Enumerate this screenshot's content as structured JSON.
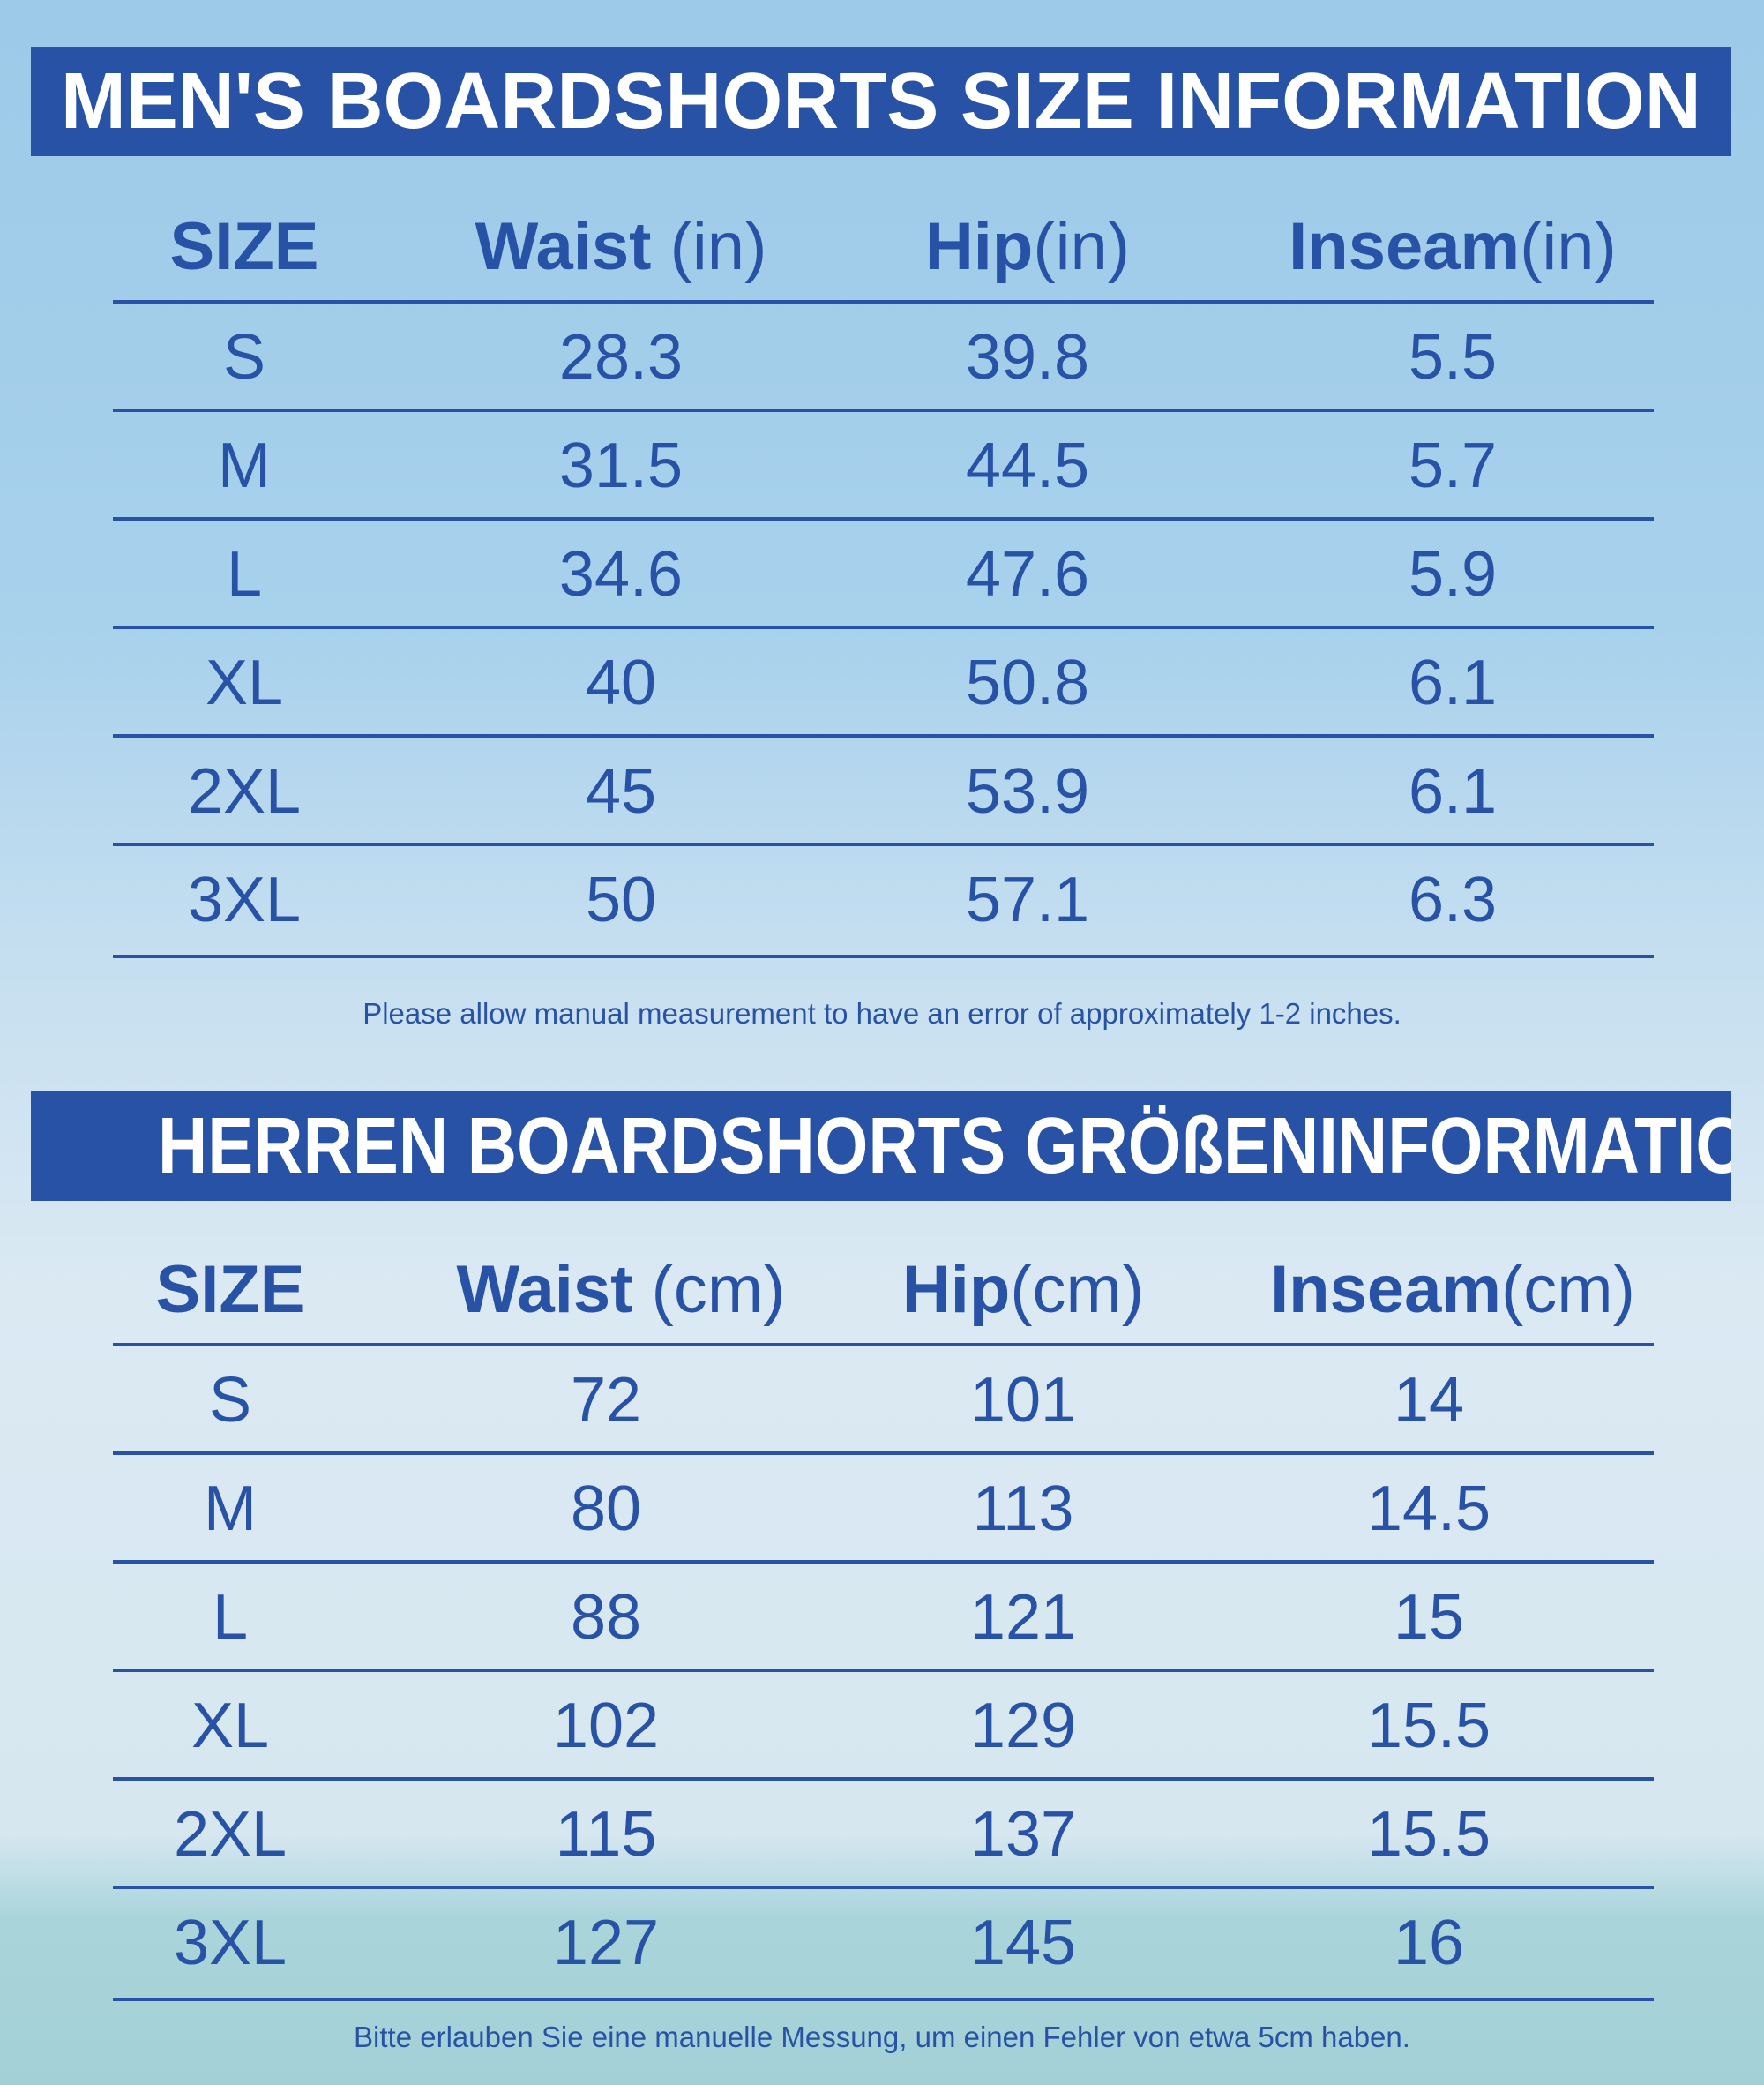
{
  "colors": {
    "accent": "#2852a6",
    "banner_text": "#ffffff"
  },
  "mens": {
    "title": "MEN'S BOARDSHORTS SIZE INFORMATION",
    "headers": [
      {
        "main": "SIZE",
        "unit": ""
      },
      {
        "main": "Waist",
        "unit": " (in)"
      },
      {
        "main": "Hip",
        "unit": "(in)"
      },
      {
        "main": "Inseam",
        "unit": "(in)"
      }
    ],
    "rows": [
      [
        "S",
        "28.3",
        "39.8",
        "5.5"
      ],
      [
        "M",
        "31.5",
        "44.5",
        "5.7"
      ],
      [
        "L",
        "34.6",
        "47.6",
        "5.9"
      ],
      [
        "XL",
        "40",
        "50.8",
        "6.1"
      ],
      [
        "2XL",
        "45",
        "53.9",
        "6.1"
      ],
      [
        "3XL",
        "50",
        "57.1",
        "6.3"
      ]
    ],
    "note": "Please allow manual measurement to have an error of approximately 1-2 inches."
  },
  "herren": {
    "title": "HERREN BOARDSHORTS GRÖßENINFORMATION",
    "headers": [
      {
        "main": "SIZE",
        "unit": ""
      },
      {
        "main": "Waist",
        "unit": " (cm)"
      },
      {
        "main": "Hip",
        "unit": "(cm)"
      },
      {
        "main": "Inseam",
        "unit": "(cm)"
      }
    ],
    "rows": [
      [
        "S",
        "72",
        "101",
        "14"
      ],
      [
        "M",
        "80",
        "113",
        "14.5"
      ],
      [
        "L",
        "88",
        "121",
        "15"
      ],
      [
        "XL",
        "102",
        "129",
        "15.5"
      ],
      [
        "2XL",
        "115",
        "137",
        "15.5"
      ],
      [
        "3XL",
        "127",
        "145",
        "16"
      ]
    ],
    "note": "Bitte erlauben Sie eine manuelle Messung, um einen Fehler von etwa 5cm haben."
  }
}
